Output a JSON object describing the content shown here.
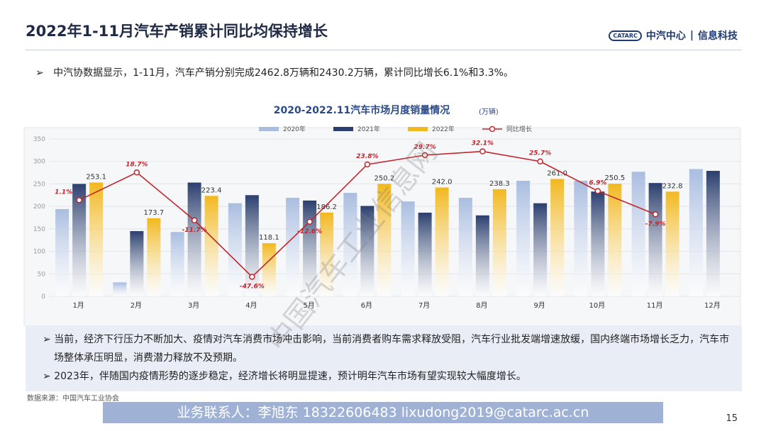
{
  "header": {
    "title": "2022年1-11月汽车产销累计同比均保持增长",
    "logo_mark": "CATARC",
    "logo_text": "中汽中心",
    "logo_sub": "信息科技"
  },
  "intro": "中汽协数据显示，1-11月，汽车产销分别完成2462.8万辆和2430.2万辆，累计同比增长6.1%和3.3%。",
  "chart_data": {
    "type": "bar",
    "title": "2020-2022.11汽车市场月度销量情况",
    "unit": "(万辆)",
    "categories": [
      "1月",
      "2月",
      "3月",
      "4月",
      "5月",
      "6月",
      "7月",
      "8月",
      "9月",
      "10月",
      "11月",
      "12月"
    ],
    "series": [
      {
        "name": "2020年",
        "color": "#a9bde0",
        "values": [
          194,
          31,
          143,
          207,
          219,
          230,
          211,
          219,
          257,
          257,
          277,
          283
        ]
      },
      {
        "name": "2021年",
        "color": "#2b3f6e",
        "values": [
          250,
          145,
          253,
          225,
          213,
          201,
          186,
          180,
          207,
          233,
          252,
          279
        ]
      },
      {
        "name": "2022年",
        "color": "#f2b81e",
        "values": [
          253.1,
          173.7,
          223.4,
          118.1,
          186.2,
          250.2,
          242.0,
          238.3,
          261.0,
          250.5,
          232.8,
          null
        ],
        "value_labels": [
          "253.1",
          "173.7",
          "223.4",
          "118.1",
          "186.2",
          "250.2",
          "242.0",
          "238.3",
          "261.0",
          "250.5",
          "232.8",
          null
        ]
      },
      {
        "name": "同比增长",
        "type": "line",
        "axis": "y2",
        "color": "#c0272d",
        "values": [
          1.1,
          18.7,
          -11.7,
          -47.6,
          -12.6,
          23.8,
          29.7,
          32.1,
          25.7,
          6.9,
          -7.9,
          null
        ],
        "value_labels": [
          "1.1%",
          "18.7%",
          "-11.7%",
          "-47.6%",
          "-12.6%",
          "23.8%",
          "29.7%",
          "32.1%",
          "25.7%",
          "6.9%",
          "-7.9%",
          null
        ]
      }
    ],
    "ylim": [
      0,
      350
    ],
    "yticks": [
      0,
      50,
      100,
      150,
      200,
      250,
      300,
      350
    ],
    "y2lim": [
      -60,
      40
    ],
    "grid": true,
    "legend": "top"
  },
  "notes": [
    "当前，经济下行压力不断加大、疫情对汽车消费市场冲击影响，当前消费者购车需求释放受阻，汽车行业批发端增速放缓，国内终端市场增长乏力，汽车市场整体承压明显，消费潜力释放不及预期。",
    "2023年，伴随国内疫情形势的逐步稳定，经济增长将明显提速，预计明年汽车市场有望实现较大幅度增长。"
  ],
  "source": "数据来源：中国汽车工业协会",
  "contact": "业务联系人：李旭东  18322606483  lixudong2019@catarc.ac.cn",
  "watermark": "中国汽车工业信息网",
  "page": "15"
}
